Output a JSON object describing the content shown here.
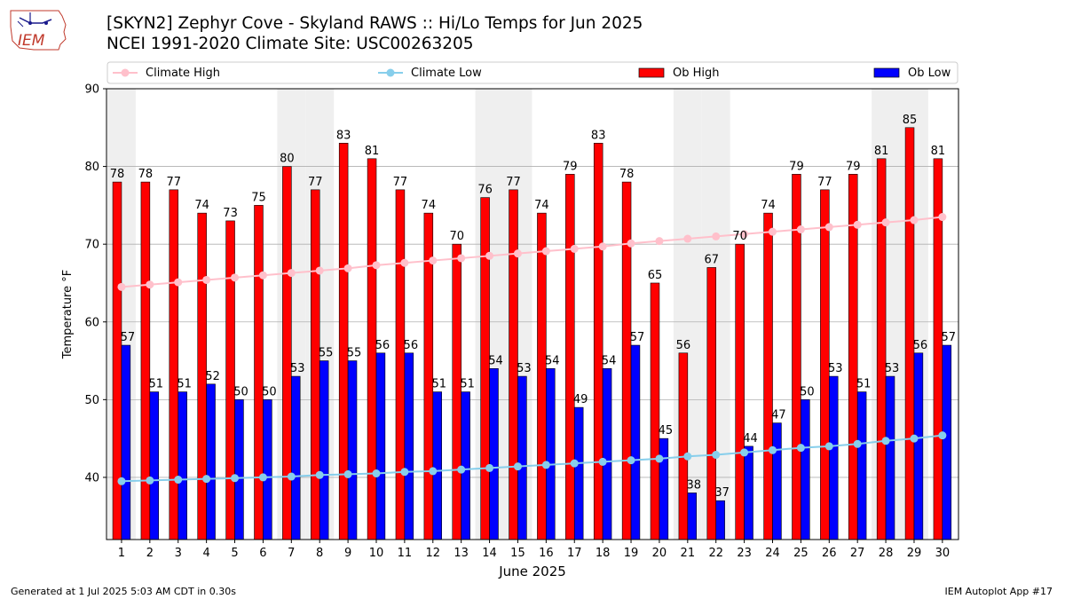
{
  "header": {
    "title_line1": "[SKYN2] Zephyr Cove - Skyland RAWS :: Hi/Lo Temps for Jun 2025",
    "title_line2": "NCEI 1991-2020 Climate Site: USC00263205",
    "logo_text": "IEM"
  },
  "footer": {
    "generated": "Generated at 1 Jul 2025 5:03 AM CDT in 0.30s",
    "app": "IEM Autoplot App #17"
  },
  "colors": {
    "ob_high": "#ff0000",
    "ob_low": "#0000ff",
    "climate_high": "#ffc0cb",
    "climate_low": "#87ceeb",
    "weekend_band": "#efefef",
    "grid": "#b0b0b0"
  },
  "chart_data": {
    "type": "bar",
    "xlabel": "June 2025",
    "ylabel": "Temperature °F",
    "ylim": [
      32,
      90
    ],
    "yticks": [
      40,
      50,
      60,
      70,
      80,
      90
    ],
    "grid": "horizontal",
    "legend_placement": "top",
    "categories": [
      1,
      2,
      3,
      4,
      5,
      6,
      7,
      8,
      9,
      10,
      11,
      12,
      13,
      14,
      15,
      16,
      17,
      18,
      19,
      20,
      21,
      22,
      23,
      24,
      25,
      26,
      27,
      28,
      29,
      30
    ],
    "shaded_days": [
      1,
      7,
      8,
      14,
      15,
      21,
      22,
      28,
      29
    ],
    "series": [
      {
        "name": "Climate High",
        "kind": "line",
        "values": [
          64.5,
          64.8,
          65.1,
          65.4,
          65.7,
          66.0,
          66.3,
          66.6,
          66.9,
          67.3,
          67.6,
          67.9,
          68.2,
          68.5,
          68.8,
          69.1,
          69.4,
          69.7,
          70.1,
          70.4,
          70.7,
          71.0,
          71.3,
          71.6,
          71.9,
          72.2,
          72.5,
          72.8,
          73.1,
          73.5
        ]
      },
      {
        "name": "Climate Low",
        "kind": "line",
        "values": [
          39.5,
          39.6,
          39.7,
          39.8,
          39.9,
          40.0,
          40.1,
          40.3,
          40.4,
          40.5,
          40.7,
          40.8,
          41.0,
          41.2,
          41.4,
          41.6,
          41.8,
          42.0,
          42.2,
          42.4,
          42.7,
          42.9,
          43.2,
          43.5,
          43.8,
          44.0,
          44.3,
          44.7,
          45.0,
          45.4
        ]
      },
      {
        "name": "Ob High",
        "kind": "bar",
        "values": [
          78,
          78,
          77,
          74,
          73,
          75,
          80,
          77,
          83,
          81,
          77,
          74,
          70,
          76,
          77,
          74,
          79,
          83,
          78,
          65,
          56,
          67,
          70,
          74,
          79,
          77,
          79,
          81,
          85,
          81
        ]
      },
      {
        "name": "Ob Low",
        "kind": "bar",
        "values": [
          57,
          51,
          51,
          52,
          50,
          50,
          53,
          55,
          55,
          56,
          56,
          51,
          51,
          54,
          53,
          54,
          49,
          54,
          57,
          45,
          38,
          37,
          44,
          47,
          50,
          53,
          51,
          53,
          56,
          57
        ]
      }
    ]
  }
}
